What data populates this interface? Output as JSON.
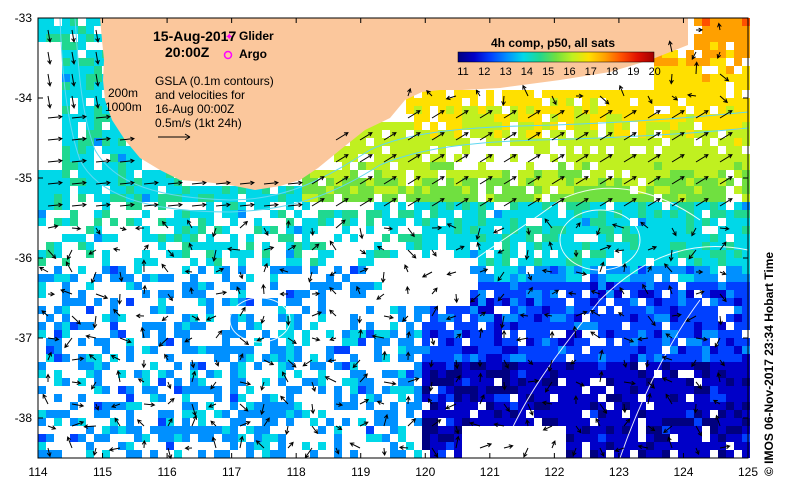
{
  "header": {
    "date": "15-Aug-2017",
    "time": "20:00Z",
    "legend_glider": "Glider",
    "legend_argo": "Argo",
    "product": "4h comp, p50, all sats"
  },
  "annotation": {
    "line1": "GSLA (0.1m contours)",
    "line2": "and velocities for",
    "line3": "16-Aug 00:00Z",
    "line4": "0.5m/s (1kt 24h)",
    "isobath_200": "200m",
    "isobath_1000": "1000m"
  },
  "colorbar": {
    "ticks": [
      "11",
      "12",
      "13",
      "14",
      "15",
      "16",
      "17",
      "18",
      "19",
      "20"
    ],
    "colors": [
      "#000080",
      "#0000c8",
      "#0040ff",
      "#0090ff",
      "#00d8e8",
      "#20d890",
      "#70e040",
      "#c0f020",
      "#ffe000",
      "#ffa000",
      "#ff5000",
      "#e01000",
      "#a00000"
    ]
  },
  "axes": {
    "y_ticks": [
      "-33",
      "-34",
      "-35",
      "-36",
      "-37",
      "-38"
    ],
    "x_ticks": [
      "114",
      "115",
      "116",
      "117",
      "118",
      "119",
      "120",
      "121",
      "122",
      "123",
      "124",
      "125"
    ]
  },
  "footer": "© IMOS 06-Nov-2017 23:34 Hobart Time",
  "colors": {
    "land": "#fbc79c",
    "isobath": "#60d8f0"
  }
}
